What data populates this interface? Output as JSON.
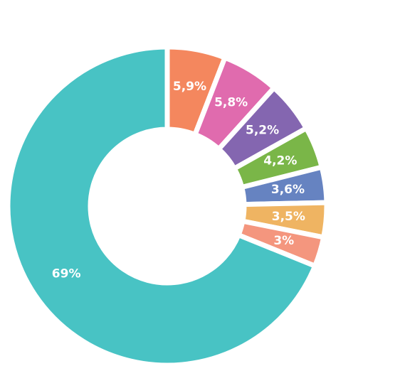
{
  "chart_data": {
    "type": "donut",
    "values": [
      5.9,
      5.8,
      5.2,
      4.2,
      3.6,
      3.5,
      3,
      69
    ],
    "value_labels": [
      "5,9%",
      "5,8%",
      "5,2%",
      "4,2%",
      "3,6%",
      "3,5%",
      "3%",
      "69%"
    ],
    "colors": [
      "#f4875e",
      "#e06bae",
      "#8466b0",
      "#7ab648",
      "#6683c1",
      "#efb462",
      "#f4967e",
      "#48c3c4"
    ]
  }
}
